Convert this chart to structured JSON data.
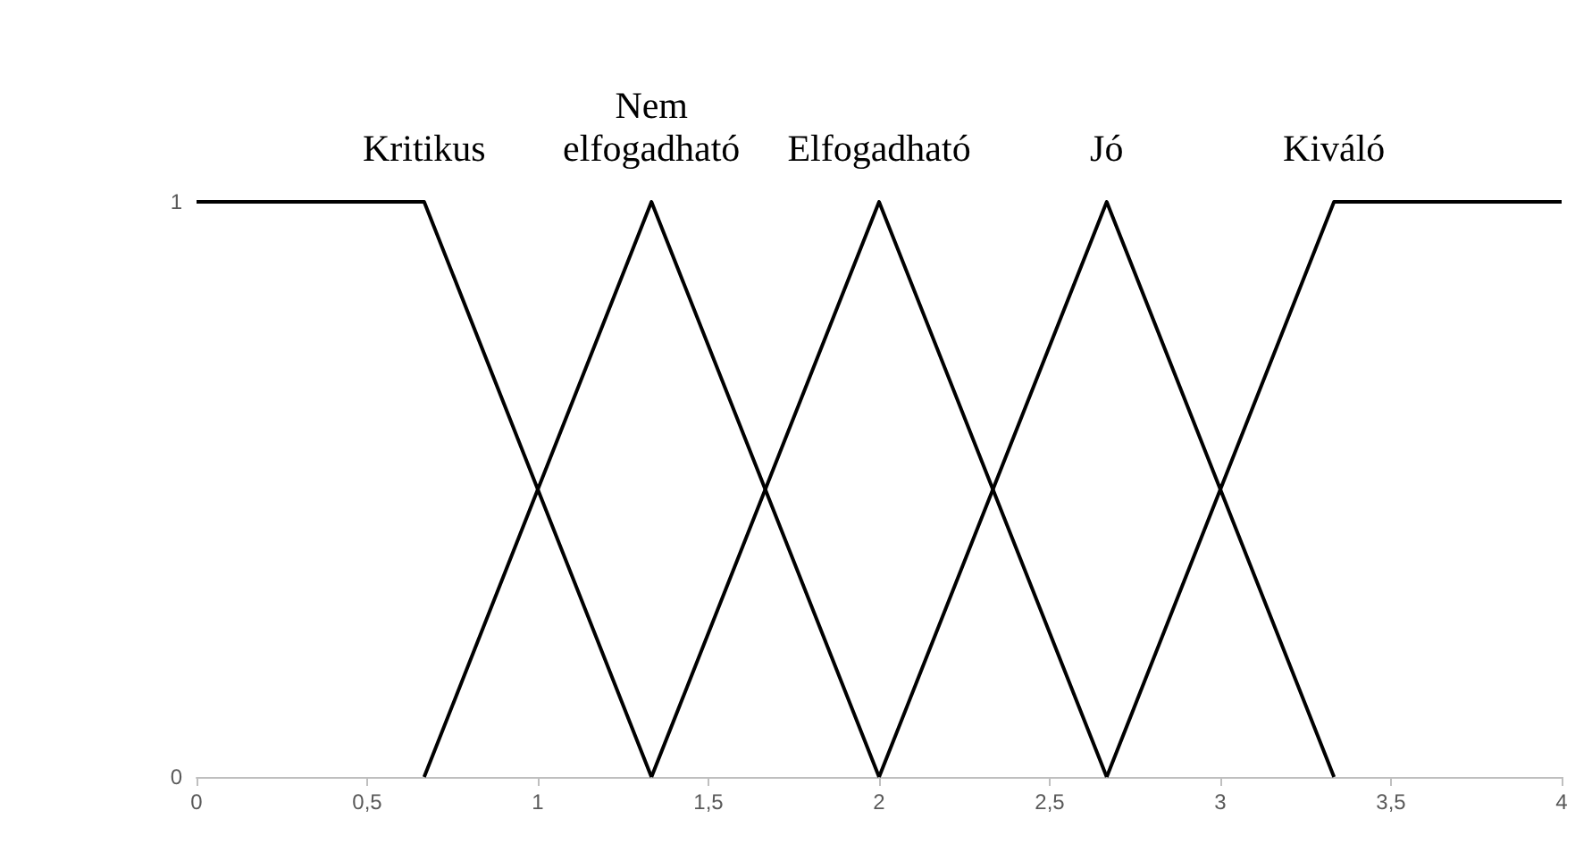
{
  "chart_data": {
    "type": "line",
    "series": [
      {
        "name": "Kritikus",
        "color": "#000000",
        "x": [
          0,
          0.667,
          1.333
        ],
        "values": [
          1,
          1,
          0
        ]
      },
      {
        "name": "Nem\nelfogadható",
        "color": "#000000",
        "x": [
          0.667,
          1.333,
          2
        ],
        "values": [
          0,
          1,
          0
        ]
      },
      {
        "name": "Elfogadható",
        "color": "#000000",
        "x": [
          1.333,
          2,
          2.667
        ],
        "values": [
          0,
          1,
          0
        ]
      },
      {
        "name": "Jó",
        "color": "#000000",
        "x": [
          2,
          2.667,
          3.333
        ],
        "values": [
          0,
          1,
          0
        ]
      },
      {
        "name": "Kiváló",
        "color": "#000000",
        "x": [
          2.667,
          3.333,
          4
        ],
        "values": [
          0,
          1,
          1
        ]
      }
    ],
    "xlim": [
      0,
      4
    ],
    "xticks": [
      0,
      {
        "value": 0.5,
        "label": "0,5"
      },
      1,
      {
        "value": 1.5,
        "label": "1,5"
      },
      2,
      {
        "value": 2.5,
        "label": "2,5"
      },
      3,
      {
        "value": 3.5,
        "label": "3,5"
      },
      4
    ],
    "ylim": [
      0,
      1
    ],
    "yticks": [
      0,
      1
    ],
    "grid": false,
    "marker": "none",
    "line_style": "solid"
  }
}
